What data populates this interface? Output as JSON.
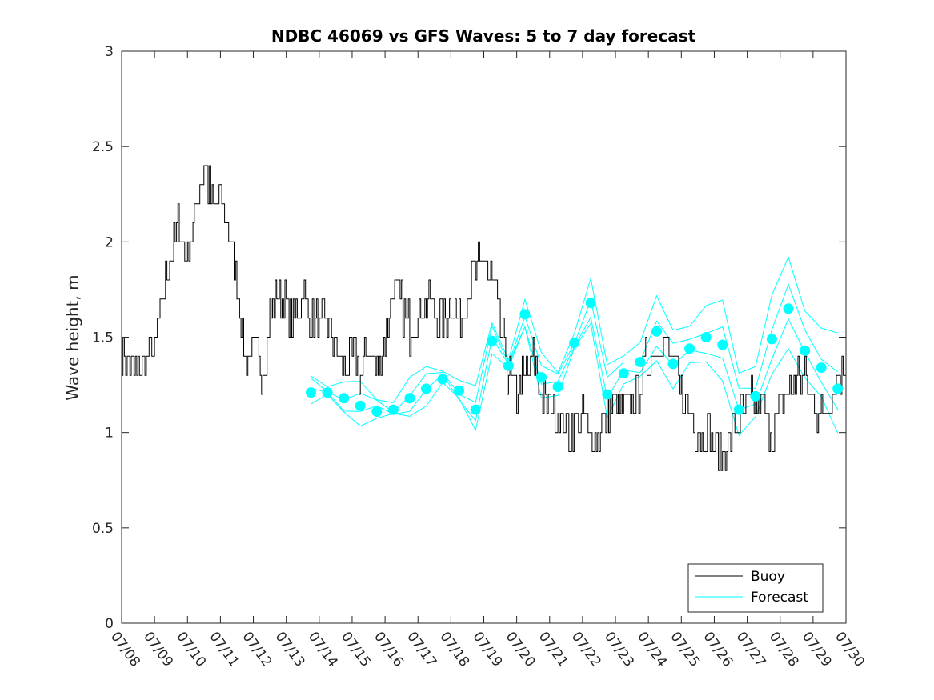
{
  "chart_data": {
    "type": "line",
    "title": "NDBC 46069 vs GFS Waves: 5 to 7 day forecast",
    "xlabel": "",
    "ylabel": "Wave height, m",
    "xlim": [
      0,
      22
    ],
    "ylim": [
      0,
      3
    ],
    "yticks": [
      0,
      0.5,
      1,
      1.5,
      2,
      2.5,
      3
    ],
    "yticklabels": [
      "0",
      "0.5",
      "1",
      "1.5",
      "2",
      "2.5",
      "3"
    ],
    "xticks": [
      0,
      1,
      2,
      3,
      4,
      5,
      6,
      7,
      8,
      9,
      10,
      11,
      12,
      13,
      14,
      15,
      16,
      17,
      18,
      19,
      20,
      21,
      22
    ],
    "xticklabels": [
      "07/08",
      "07/09",
      "07/10",
      "07/11",
      "07/12",
      "07/13",
      "07/14",
      "07/15",
      "07/16",
      "07/17",
      "07/18",
      "07/19",
      "07/20",
      "07/21",
      "07/22",
      "07/23",
      "07/24",
      "07/25",
      "07/26",
      "07/27",
      "07/28",
      "07/29",
      "07/30"
    ],
    "x_units": "days after 07/08",
    "grid": false,
    "legend": {
      "location": "bottom-right",
      "entries": [
        "Buoy",
        "Forecast"
      ]
    },
    "colors": {
      "buoy": "#000000",
      "forecast": "#00ffff"
    },
    "series": [
      {
        "name": "Buoy",
        "x": [
          0,
          0.25,
          0.5,
          0.75,
          1.0,
          1.25,
          1.5,
          1.75,
          2.0,
          2.25,
          2.5,
          2.75,
          3.0,
          3.25,
          3.5,
          3.75,
          4.0,
          4.25,
          4.5,
          4.75,
          5.0,
          5.25,
          5.5,
          5.75,
          6.0,
          6.25,
          6.5,
          6.75,
          7.0,
          7.25,
          7.5,
          7.75,
          8.0,
          8.25,
          8.5,
          8.75,
          9.0,
          9.25,
          9.5,
          9.75,
          10.0,
          10.25,
          10.5,
          10.75,
          11.0,
          11.25,
          11.5,
          11.75,
          12.0,
          12.25,
          12.5,
          12.75,
          13.0,
          13.25,
          13.5,
          13.75,
          14.0,
          14.25,
          14.5,
          14.75,
          15.0,
          15.25,
          15.5,
          15.75,
          16.0,
          16.25,
          16.5,
          16.75,
          17.0,
          17.25,
          17.5,
          17.75,
          18.0,
          18.25,
          18.5,
          18.75,
          19.0,
          19.25,
          19.5,
          19.75,
          20.0,
          20.25,
          20.5,
          20.75,
          21.0,
          21.25,
          21.5,
          21.75,
          22.0
        ],
        "values": [
          1.45,
          1.35,
          1.3,
          1.4,
          1.45,
          1.7,
          1.95,
          2.1,
          1.9,
          2.2,
          2.4,
          2.2,
          2.25,
          2.05,
          1.8,
          1.4,
          1.45,
          1.3,
          1.6,
          1.75,
          1.65,
          1.6,
          1.75,
          1.6,
          1.55,
          1.6,
          1.45,
          1.35,
          1.4,
          1.3,
          1.45,
          1.3,
          1.5,
          1.75,
          1.65,
          1.55,
          1.6,
          1.7,
          1.65,
          1.55,
          1.7,
          1.6,
          1.75,
          1.85,
          1.9,
          1.8,
          1.55,
          1.3,
          1.2,
          1.3,
          1.4,
          1.2,
          1.15,
          1.1,
          1.0,
          1.05,
          1.1,
          0.95,
          1.0,
          1.1,
          1.15,
          1.1,
          1.2,
          1.25,
          1.4,
          1.45,
          1.5,
          1.35,
          1.2,
          1.1,
          1.0,
          1.0,
          0.95,
          0.9,
          1.0,
          1.05,
          1.15,
          1.2,
          1.1,
          1.0,
          1.1,
          1.2,
          1.3,
          1.3,
          1.15,
          1.1,
          1.2,
          1.3,
          1.35
        ]
      },
      {
        "name": "Forecast",
        "x": [
          5.75,
          6.25,
          6.75,
          7.25,
          7.75,
          8.25,
          8.75,
          9.25,
          9.75,
          10.25,
          10.75,
          11.25,
          11.75,
          12.25,
          12.75,
          13.25,
          13.75,
          14.25,
          14.75,
          15.25,
          15.75,
          16.25,
          16.75,
          17.25,
          17.75,
          18.25,
          18.75,
          19.25,
          19.75,
          20.25,
          20.75,
          21.25,
          21.75
        ],
        "values": [
          1.21,
          1.21,
          1.18,
          1.14,
          1.11,
          1.12,
          1.18,
          1.23,
          1.28,
          1.22,
          1.12,
          1.48,
          1.35,
          1.62,
          1.29,
          1.24,
          1.47,
          1.68,
          1.2,
          1.31,
          1.37,
          1.53,
          1.36,
          1.44,
          1.5,
          1.46,
          1.12,
          1.19,
          1.49,
          1.65,
          1.43,
          1.34,
          1.23
        ]
      }
    ]
  }
}
